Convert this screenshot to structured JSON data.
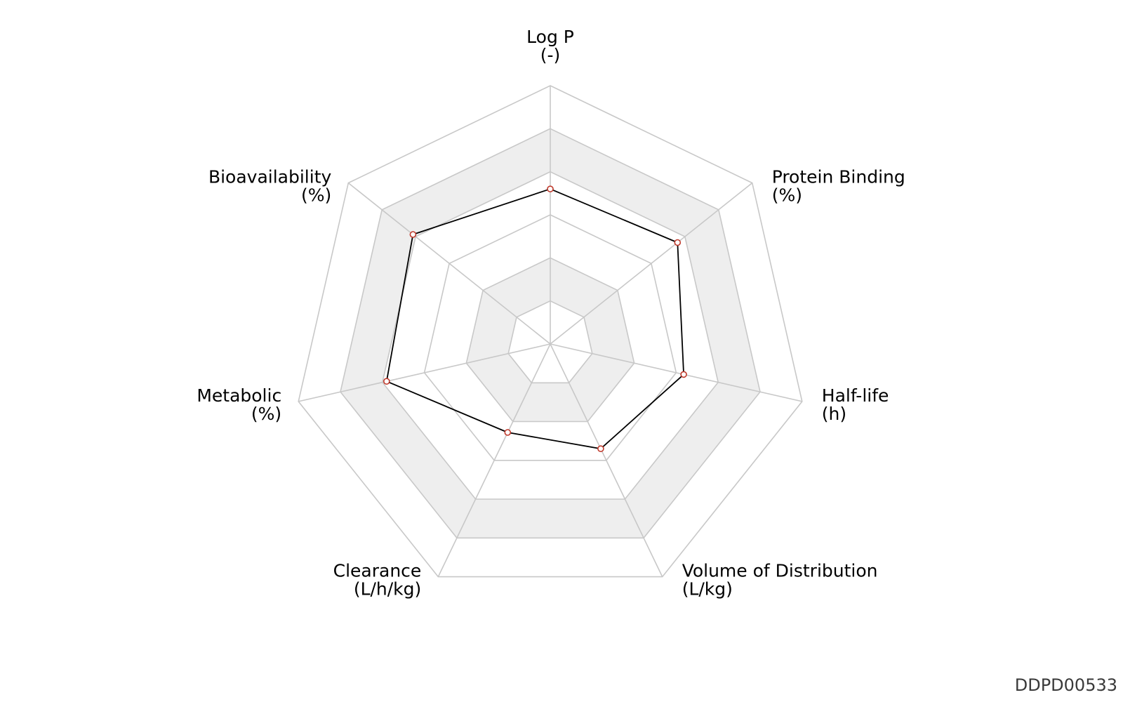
{
  "chart_data": {
    "type": "radar",
    "axes": [
      {
        "name": "Log P",
        "unit": "(-)"
      },
      {
        "name": "Protein Binding",
        "unit": "(%)"
      },
      {
        "name": "Half-life",
        "unit": "(h)"
      },
      {
        "name": "Volume of Distribution",
        "unit": "(L/kg)"
      },
      {
        "name": "Clearance",
        "unit": "(L/h/kg)"
      },
      {
        "name": "Metabolic",
        "unit": "(%)"
      },
      {
        "name": "Bioavailability",
        "unit": "(%)"
      }
    ],
    "rings": 6,
    "shaded_bands": [
      [
        1,
        2
      ],
      [
        4,
        5
      ]
    ],
    "values_normalized": [
      0.6,
      0.63,
      0.53,
      0.45,
      0.38,
      0.65,
      0.68
    ],
    "grid": true,
    "colors": {
      "line": "#000000",
      "marker_edge": "#c0392b",
      "marker_fill": "#ffffff",
      "grid": "#c8c8c8",
      "band": "#eeeeee"
    }
  },
  "footer": {
    "id": "DDPD00533"
  }
}
